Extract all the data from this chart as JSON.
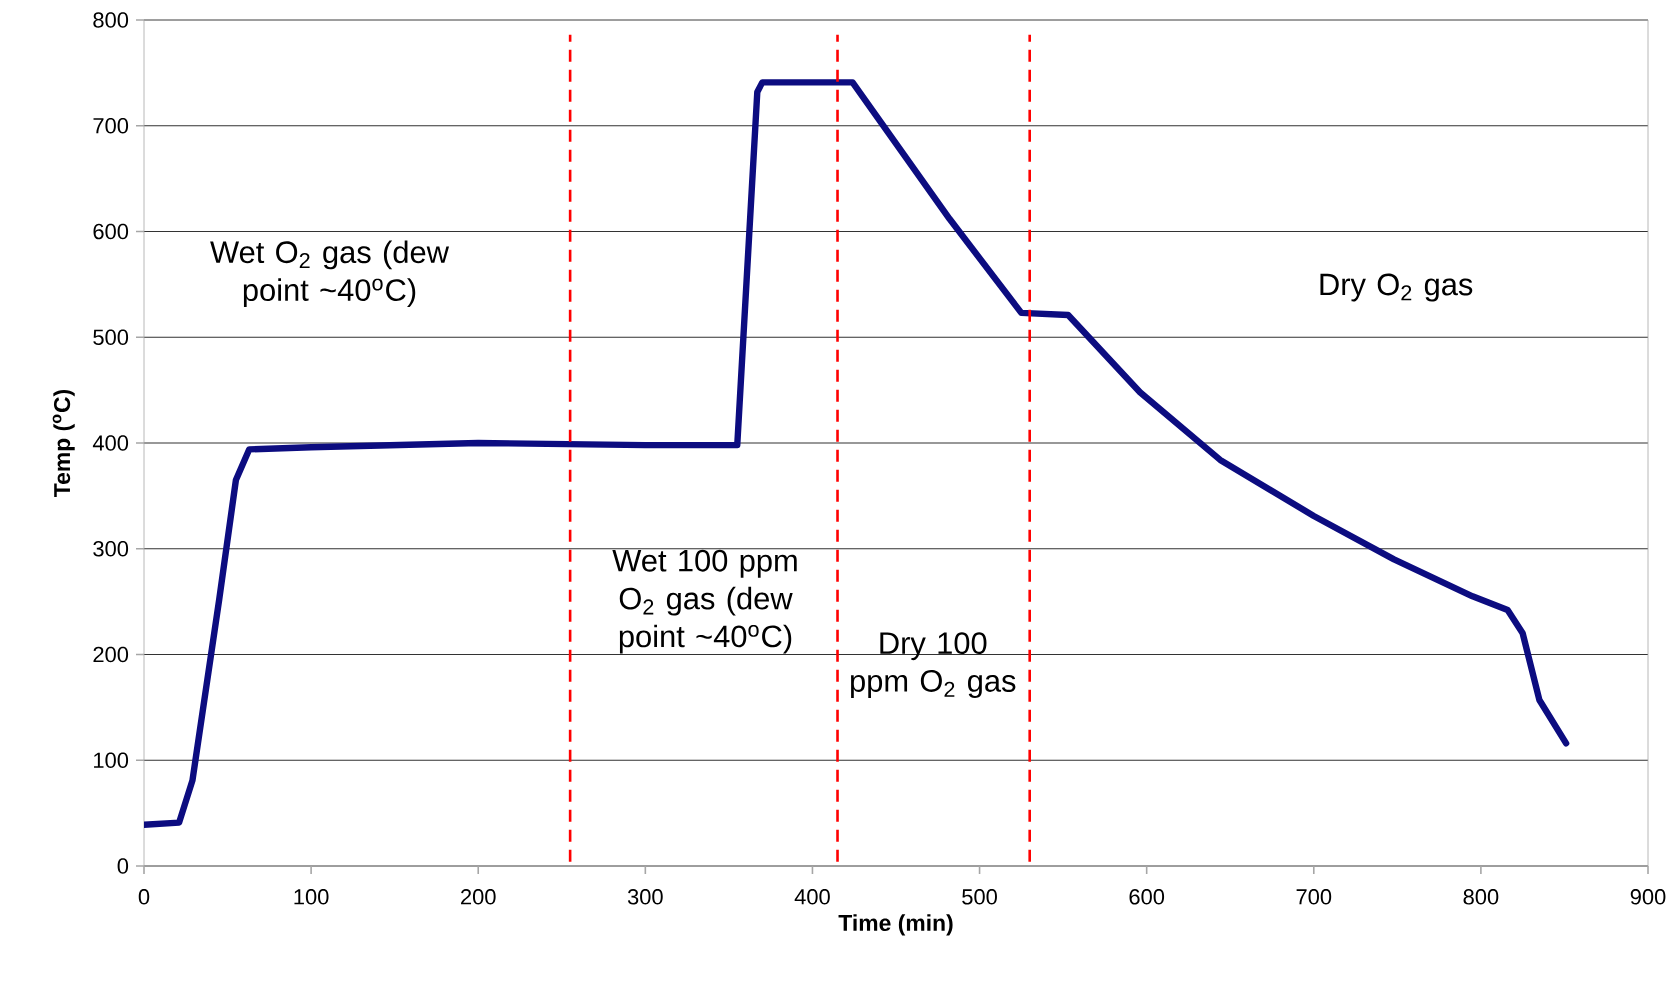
{
  "chart_data": {
    "type": "line",
    "xlabel": "Time (min)",
    "ylabel": "Temp ($^{o}$C)",
    "x": [
      0,
      21,
      29,
      45,
      55,
      63,
      100,
      200,
      300,
      355,
      367,
      370,
      424,
      482,
      525,
      553,
      596,
      644,
      700,
      748,
      795,
      816,
      825,
      835,
      851
    ],
    "series": [
      {
        "color": "#0c0c80",
        "values": [
          39,
          41,
          81,
          252,
          365,
          394,
          396,
          400,
          398,
          398,
          732,
          741,
          741,
          612,
          523,
          521,
          448,
          384,
          331,
          290,
          255,
          242,
          220,
          157,
          116
        ]
      }
    ],
    "xlim": [
      0,
      900
    ],
    "ylim": [
      0,
      800
    ],
    "xticks": [
      0,
      100,
      200,
      300,
      400,
      500,
      600,
      700,
      800,
      900
    ],
    "yticks": [
      0,
      100,
      200,
      300,
      400,
      500,
      600,
      700,
      800
    ],
    "grid": "y",
    "marker": "none",
    "line_style": "solid",
    "ref_lines": [
      {
        "axis": "x",
        "value": 255,
        "color": "#ff0000",
        "line_style": "dashed"
      },
      {
        "axis": "x",
        "value": 415,
        "color": "#ff0000",
        "line_style": "dashed"
      },
      {
        "axis": "x",
        "value": 530,
        "color": "#ff0000",
        "line_style": "dashed"
      }
    ],
    "annotations": [
      "Wet O$_{2}$ gas (dew point ~40$^{o}$C)",
      "Wet 100 ppm O$_{2}$ gas (dew point ~40$^{o}$C)",
      "Dry 100 ppm O$_{2}$ gas",
      "Dry O$_{2}$ gas"
    ]
  }
}
